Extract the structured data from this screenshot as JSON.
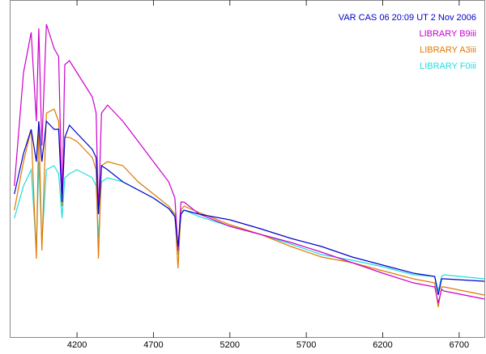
{
  "chart_data": {
    "type": "line",
    "x": [
      3790,
      3850,
      3900,
      3934,
      3950,
      3970,
      4000,
      4050,
      4080,
      4102,
      4120,
      4150,
      4200,
      4300,
      4325,
      4340,
      4360,
      4400,
      4500,
      4600,
      4700,
      4800,
      4840,
      4861,
      4880,
      4900,
      5000,
      5200,
      5400,
      5600,
      5800,
      6000,
      6200,
      6400,
      6540,
      6563,
      6585,
      6600,
      6865
    ],
    "series": [
      {
        "name": "VAR CAS 06 20:09 UT 2 Nov 2006",
        "color": "#0000cc",
        "values": [
          178,
          228,
          258,
          218,
          268,
          218,
          268,
          258,
          258,
          168,
          248,
          263,
          253,
          233,
          223,
          153,
          213,
          208,
          193,
          183,
          173,
          160,
          150,
          113,
          153,
          158,
          153,
          146,
          135,
          123,
          113,
          100,
          90,
          80,
          76,
          53,
          73,
          73,
          70
        ]
      },
      {
        "name": "LIBRARY B9iii",
        "color": "#cc00cc",
        "values": [
          188,
          328,
          378,
          268,
          383,
          238,
          388,
          358,
          348,
          168,
          338,
          343,
          328,
          298,
          278,
          153,
          278,
          288,
          268,
          243,
          218,
          193,
          173,
          108,
          168,
          168,
          153,
          138,
          128,
          118,
          106,
          93,
          80,
          68,
          63,
          43,
          60,
          58,
          48
        ]
      },
      {
        "name": "LIBRARY A3iii",
        "color": "#e07800",
        "values": [
          158,
          218,
          258,
          98,
          268,
          108,
          278,
          283,
          268,
          163,
          248,
          248,
          243,
          223,
          208,
          98,
          213,
          218,
          213,
          193,
          178,
          163,
          153,
          86,
          158,
          163,
          155,
          140,
          128,
          113,
          100,
          93,
          83,
          73,
          68,
          38,
          63,
          63,
          53
        ]
      },
      {
        "name": "LIBRARY F0iii",
        "color": "#22dddd",
        "values": [
          148,
          188,
          208,
          108,
          218,
          118,
          208,
          213,
          203,
          148,
          198,
          203,
          208,
          198,
          188,
          123,
          193,
          198,
          193,
          183,
          173,
          160,
          153,
          103,
          156,
          158,
          150,
          138,
          128,
          116,
          103,
          96,
          88,
          78,
          76,
          58,
          76,
          78,
          73
        ]
      }
    ],
    "xlim": [
      3765,
      6865
    ],
    "ylim": [
      0,
      418
    ],
    "xticks": [
      4200,
      4700,
      5200,
      5700,
      6200,
      6700
    ]
  }
}
